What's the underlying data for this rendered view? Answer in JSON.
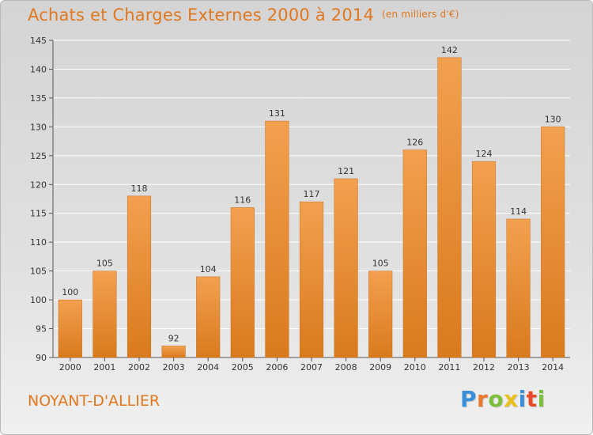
{
  "chart_data": {
    "type": "bar",
    "title": "Achats et Charges Externes 2000 à 2014",
    "subtitle": "(en milliers d'€)",
    "categories": [
      "2000",
      "2001",
      "2002",
      "2003",
      "2004",
      "2005",
      "2006",
      "2007",
      "2008",
      "2009",
      "2010",
      "2011",
      "2012",
      "2013",
      "2014"
    ],
    "values": [
      100,
      105,
      118,
      92,
      104,
      116,
      131,
      117,
      121,
      105,
      126,
      142,
      124,
      114,
      130
    ],
    "xlabel": "",
    "ylabel": "",
    "ylim": [
      90,
      145
    ],
    "yticks": [
      90,
      95,
      100,
      105,
      110,
      115,
      120,
      125,
      130,
      135,
      140,
      145
    ],
    "grid": true,
    "legend": "none",
    "bar_color": "#f2a04f",
    "bar_color_dark": "#d97a1e"
  },
  "commune": "NOYANT-D'ALLIER",
  "logo": {
    "letters": [
      "P",
      "r",
      "o",
      "x",
      "i",
      "t",
      "i"
    ],
    "colors": [
      "#3a8fd9",
      "#e8782a",
      "#7cbf3a",
      "#e8c21a",
      "#3a8fd9",
      "#e84a2a",
      "#7cbf3a"
    ]
  }
}
